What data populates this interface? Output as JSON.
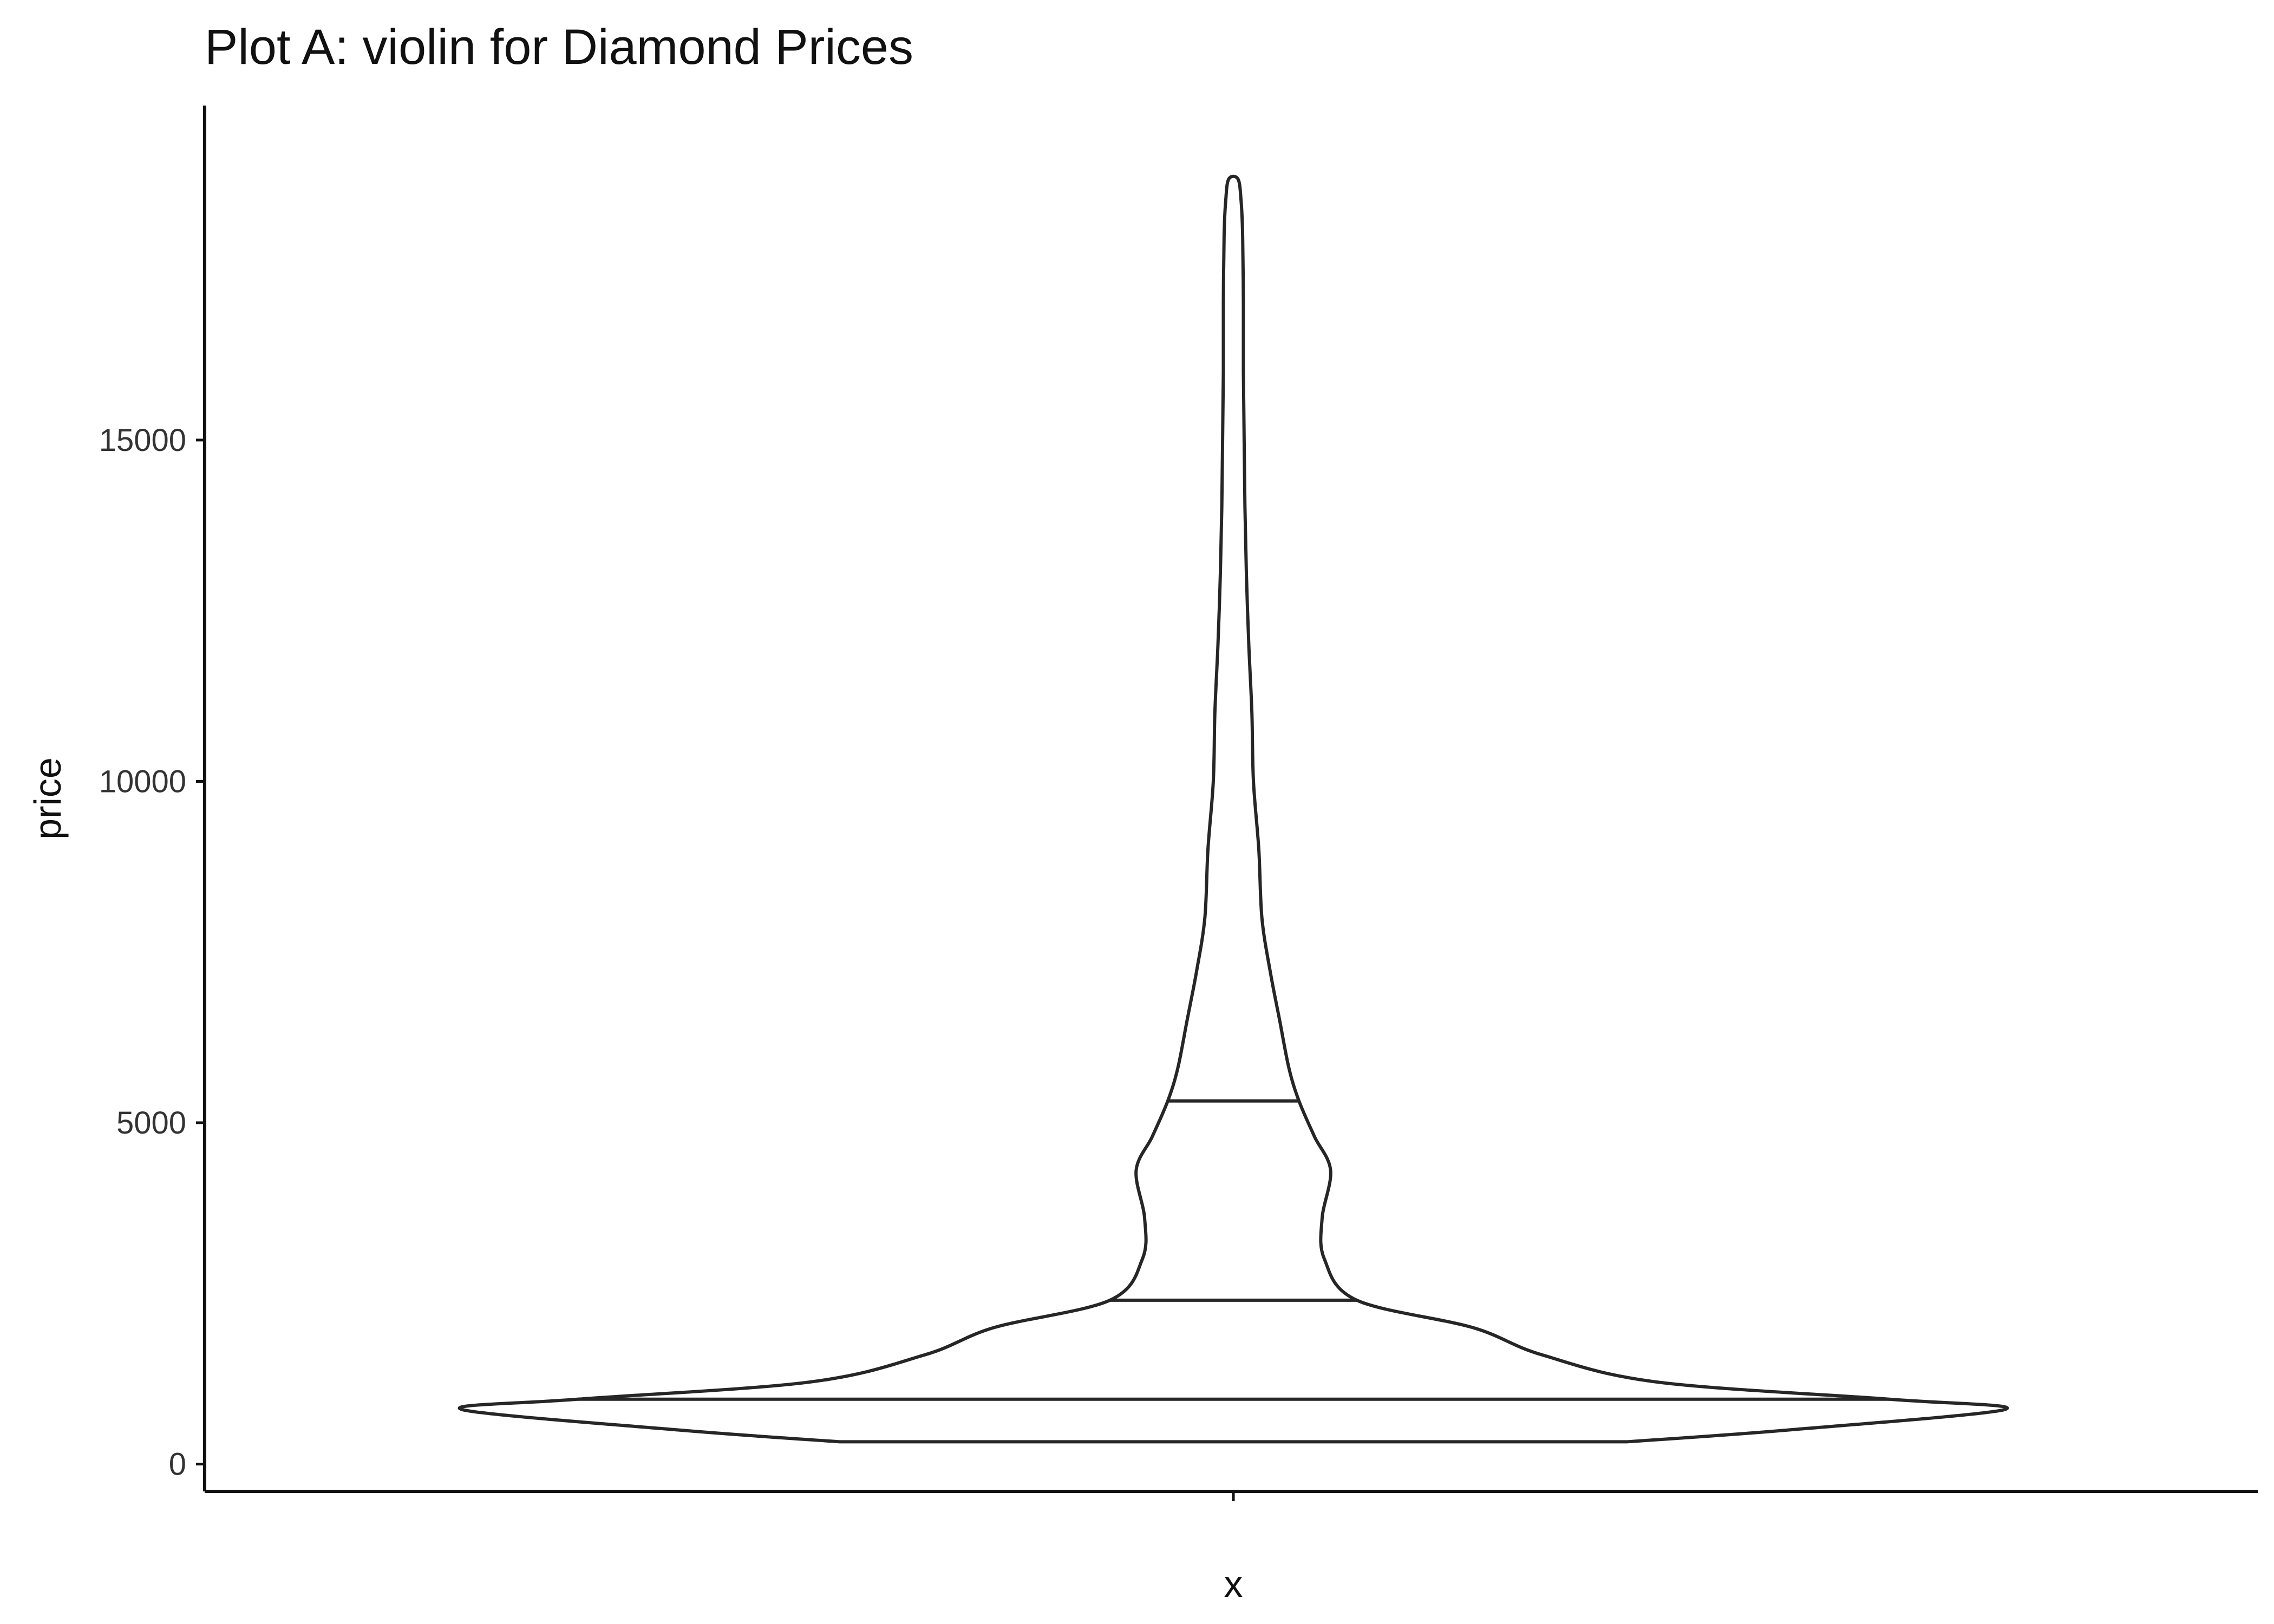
{
  "chart_data": {
    "type": "violin",
    "title": "Plot A: violin for Diamond Prices",
    "xlabel": "x",
    "ylabel": "price",
    "x_ticks": [
      ""
    ],
    "y_ticks": [
      0,
      5000,
      10000,
      15000
    ],
    "ylim": [
      -400,
      19900
    ],
    "grid": false,
    "legend": "none",
    "draw_quantiles": [
      0.25,
      0.5,
      0.75
    ],
    "quantile_values": [
      950,
      2400,
      5320
    ],
    "density_profile": [
      {
        "price": 326,
        "width": 0.51
      },
      {
        "price": 500,
        "width": 0.72
      },
      {
        "price": 800,
        "width": 1.0
      },
      {
        "price": 950,
        "width": 0.85
      },
      {
        "price": 1200,
        "width": 0.55
      },
      {
        "price": 1600,
        "width": 0.4
      },
      {
        "price": 2000,
        "width": 0.31
      },
      {
        "price": 2400,
        "width": 0.16
      },
      {
        "price": 3000,
        "width": 0.118
      },
      {
        "price": 3600,
        "width": 0.115
      },
      {
        "price": 4300,
        "width": 0.126
      },
      {
        "price": 4800,
        "width": 0.105
      },
      {
        "price": 5320,
        "width": 0.085
      },
      {
        "price": 5800,
        "width": 0.072
      },
      {
        "price": 6500,
        "width": 0.06
      },
      {
        "price": 7200,
        "width": 0.048
      },
      {
        "price": 8000,
        "width": 0.037
      },
      {
        "price": 9000,
        "width": 0.033
      },
      {
        "price": 10000,
        "width": 0.026
      },
      {
        "price": 11000,
        "width": 0.024
      },
      {
        "price": 12000,
        "width": 0.02
      },
      {
        "price": 13000,
        "width": 0.017
      },
      {
        "price": 14000,
        "width": 0.015
      },
      {
        "price": 15000,
        "width": 0.014
      },
      {
        "price": 16000,
        "width": 0.013
      },
      {
        "price": 17000,
        "width": 0.013
      },
      {
        "price": 18000,
        "width": 0.012
      },
      {
        "price": 18500,
        "width": 0.01
      },
      {
        "price": 18823,
        "width": 0.006
      }
    ]
  }
}
